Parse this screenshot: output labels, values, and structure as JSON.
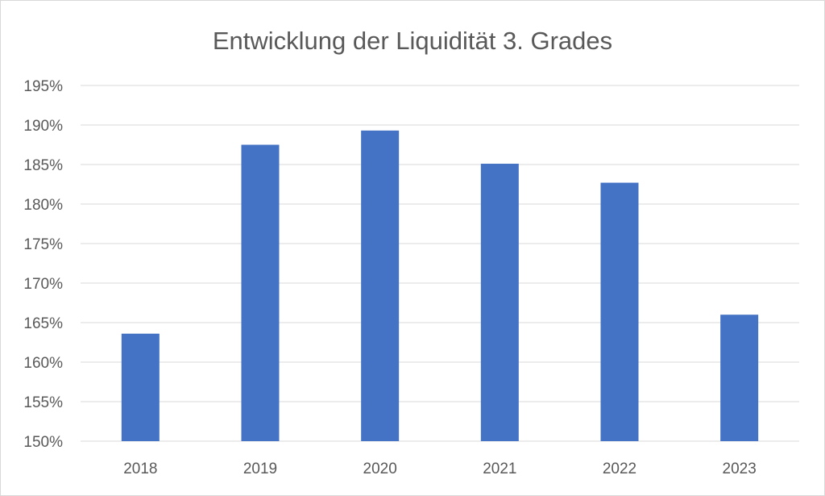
{
  "chart_data": {
    "type": "bar",
    "title": "Entwicklung der Liquidität 3. Grades",
    "xlabel": "",
    "ylabel": "",
    "categories": [
      "2018",
      "2019",
      "2020",
      "2021",
      "2022",
      "2023"
    ],
    "values": [
      163.6,
      187.5,
      189.3,
      185.1,
      182.7,
      166.0
    ],
    "ylim": [
      150,
      195
    ],
    "yticks": [
      150,
      155,
      160,
      165,
      170,
      175,
      180,
      185,
      190,
      195
    ],
    "ytick_labels": [
      "150%",
      "155%",
      "160%",
      "165%",
      "170%",
      "175%",
      "180%",
      "185%",
      "190%",
      "195%"
    ],
    "grid": true,
    "legend": "none",
    "colors": {
      "bar": "#4472c4",
      "grid": "#d9d9d9",
      "text": "#595959",
      "border": "#d9d9d9"
    }
  }
}
